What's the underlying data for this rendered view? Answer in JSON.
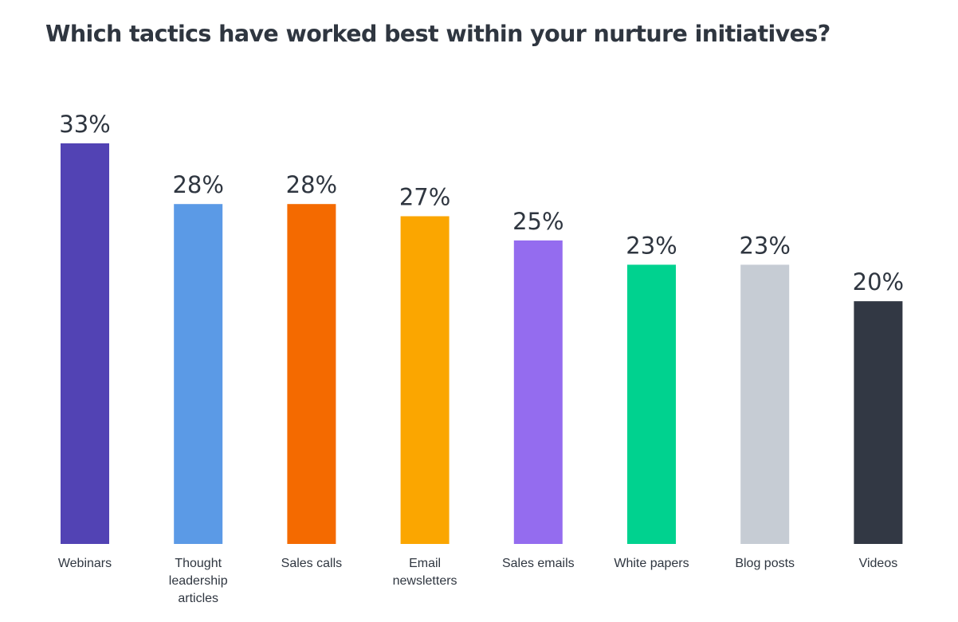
{
  "chart_data": {
    "type": "bar",
    "title": "Which tactics have worked best within your nurture initiatives?",
    "categories": [
      "Webinars",
      "Thought leadership articles",
      "Sales calls",
      "Email newsletters",
      "Sales emails",
      "White papers",
      "Blog posts",
      "Videos"
    ],
    "category_lines": [
      [
        "Webinars"
      ],
      [
        "Thought",
        "leadership",
        "articles"
      ],
      [
        "Sales calls"
      ],
      [
        "Email",
        "newsletters"
      ],
      [
        "Sales emails"
      ],
      [
        "White papers"
      ],
      [
        "Blog posts"
      ],
      [
        "Videos"
      ]
    ],
    "values": [
      33,
      28,
      28,
      27,
      25,
      23,
      23,
      20
    ],
    "value_labels": [
      "33%",
      "28%",
      "28%",
      "27%",
      "25%",
      "23%",
      "23%",
      "20%"
    ],
    "colors": [
      "#5243b4",
      "#5b9ae6",
      "#f46a00",
      "#fba600",
      "#946cef",
      "#00d28f",
      "#c6ccd4",
      "#323844"
    ],
    "unit": "%",
    "xlabel": "",
    "ylabel": "",
    "ylim": [
      0,
      33
    ],
    "grid": false,
    "legend": "none"
  }
}
